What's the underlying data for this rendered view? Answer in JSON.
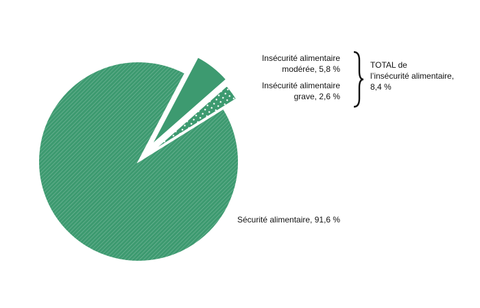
{
  "chart_data": {
    "type": "pie",
    "values": [
      91.6,
      5.8,
      2.6
    ],
    "value_labels": [
      "Sécurité alimentaire, 91,6 %",
      "Insécurité alimentaire\nmodérée, 5,8 %",
      "Insécurité alimentaire\ngrave, 2,6 %"
    ],
    "colors": [
      "#3d9a70",
      "#3d9a70",
      "#3d9a70"
    ],
    "annotation": "TOTAL de\nl’insécurité alimentaire,\n8,4 %"
  }
}
